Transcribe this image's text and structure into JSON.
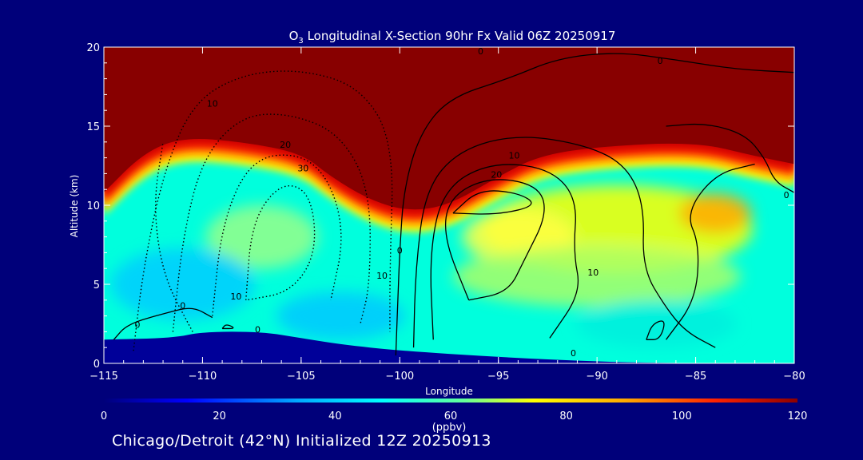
{
  "chart_data": {
    "type": "heatmap",
    "title": "O",
    "title_subscript": "3",
    "title_rest": " Longitudinal X-Section 90hr  Fx Valid 06Z 20250917",
    "xlabel": "Longitude",
    "ylabel": "Altitude (km)",
    "xlim": [
      -115,
      -80
    ],
    "ylim": [
      0,
      20
    ],
    "x_ticks": [
      -115,
      -110,
      -105,
      -100,
      -95,
      -90,
      -85,
      -80
    ],
    "x_tick_labels": [
      "−115",
      "−110",
      "−105",
      "−100",
      "−95",
      "−90",
      "−85",
      "−80"
    ],
    "y_ticks": [
      0,
      5,
      10,
      15,
      20
    ],
    "y_tick_labels": [
      "0",
      "5",
      "10",
      "15",
      "20"
    ],
    "colorbar": {
      "label": "(ppbv)",
      "range": [
        0,
        120
      ],
      "ticks": [
        0,
        20,
        40,
        60,
        80,
        100,
        120
      ],
      "tick_labels": [
        "0",
        "20",
        "40",
        "60",
        "80",
        "100",
        "120"
      ],
      "colors": [
        "#00007a",
        "#0000ff",
        "#00aaff",
        "#00ffff",
        "#66ff99",
        "#ffff00",
        "#ffaa00",
        "#ff2200",
        "#8b0000"
      ]
    },
    "tropopause_km": [
      [
        -115,
        10
      ],
      [
        -113,
        12.5
      ],
      [
        -111,
        13.5
      ],
      [
        -108,
        13.2
      ],
      [
        -105,
        12.5
      ],
      [
        -103.5,
        11
      ],
      [
        -101.5,
        9.5
      ],
      [
        -99.5,
        8.8
      ],
      [
        -97.5,
        9.2
      ],
      [
        -95,
        11
      ],
      [
        -93,
        12.3
      ],
      [
        -90,
        12.9
      ],
      [
        -85,
        13.2
      ],
      [
        -82,
        12.3
      ],
      [
        -80,
        11.8
      ]
    ],
    "surface_km": [
      [
        -115,
        1.5
      ],
      [
        -111.5,
        1.6
      ],
      [
        -110,
        2
      ],
      [
        -107,
        2
      ],
      [
        -105,
        1.6
      ],
      [
        -103,
        1.2
      ],
      [
        -100,
        0.8
      ],
      [
        -95,
        0.4
      ],
      [
        -90,
        0.1
      ],
      [
        -85,
        0
      ],
      [
        -80,
        0
      ]
    ],
    "contour_labels": [
      {
        "text": "10",
        "x": -109.5,
        "y": 16.4,
        "style": "dotted"
      },
      {
        "text": "20",
        "x": -105.8,
        "y": 13.8,
        "style": "dotted"
      },
      {
        "text": "30",
        "x": -104.9,
        "y": 12.3,
        "style": "dotted"
      },
      {
        "text": "10",
        "x": -108.3,
        "y": 4.2,
        "style": "dotted"
      },
      {
        "text": "10",
        "x": -100.9,
        "y": 5.5,
        "style": "dotted"
      },
      {
        "text": "0",
        "x": -111,
        "y": 3.6,
        "style": "solid"
      },
      {
        "text": "0",
        "x": -113.3,
        "y": 2.4,
        "style": "solid"
      },
      {
        "text": "0",
        "x": -107.2,
        "y": 2.1,
        "style": "solid"
      },
      {
        "text": "0",
        "x": -100,
        "y": 7.1,
        "style": "solid"
      },
      {
        "text": "10",
        "x": -94.2,
        "y": 13.1,
        "style": "solid"
      },
      {
        "text": "20",
        "x": -95.1,
        "y": 11.9,
        "style": "solid"
      },
      {
        "text": "10",
        "x": -90.2,
        "y": 5.7,
        "style": "solid"
      },
      {
        "text": "0",
        "x": -91.2,
        "y": 0.6,
        "style": "solid"
      },
      {
        "text": "0",
        "x": -95.9,
        "y": 19.7,
        "style": "solid"
      },
      {
        "text": "0",
        "x": -86.8,
        "y": 19.1,
        "style": "solid"
      },
      {
        "text": "0",
        "x": -80.4,
        "y": 10.6,
        "style": "solid"
      }
    ]
  },
  "footer": {
    "caption": "Chicago/Detroit (42°N) Initialized 12Z 20250913"
  }
}
